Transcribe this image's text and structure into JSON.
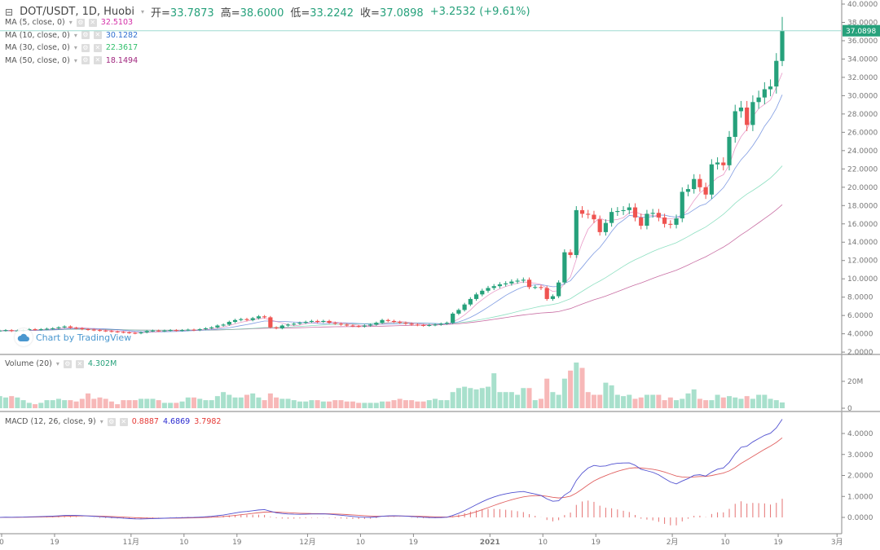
{
  "header": {
    "symbol": "DOT/USDT, 1D, Huobi",
    "open_label": "开=",
    "open": "33.7873",
    "high_label": "高=",
    "high": "38.6000",
    "low_label": "低=",
    "low": "33.2242",
    "close_label": "收=",
    "close": "37.0898",
    "change": "+3.2532 (+9.61%)"
  },
  "indicators": [
    {
      "label": "MA (5, close, 0)",
      "value": "32.5103",
      "color": "#d42fa8"
    },
    {
      "label": "MA (10, close, 0)",
      "value": "30.1282",
      "color": "#2f6fd0"
    },
    {
      "label": "MA (30, close, 0)",
      "value": "22.3617",
      "color": "#2fbf6a"
    },
    {
      "label": "MA (50, close, 0)",
      "value": "18.1494",
      "color": "#a0267e"
    }
  ],
  "volume_legend": {
    "label": "Volume (20)",
    "value": "4.302M",
    "color": "#26a17b"
  },
  "macd_legend": {
    "label": "MACD (12, 26, close, 9)",
    "hist": "0.8887",
    "macd": "4.6869",
    "signal": "3.7982",
    "hist_color": "#e53935",
    "macd_color": "#2a2ad0",
    "signal_color": "#e53935"
  },
  "watermark": "Chart by TradingView",
  "last_price_label": "37.0898",
  "colors": {
    "up": "#26a17b",
    "down": "#ef5350",
    "up_vol": "#a8e0cc",
    "down_vol": "#f7b8b8"
  },
  "chart_data": {
    "type": "candlestick",
    "price_axis": {
      "ticks": [
        "40.0000",
        "38.0000",
        "36.0000",
        "34.0000",
        "32.0000",
        "30.0000",
        "28.0000",
        "26.0000",
        "24.0000",
        "22.0000",
        "20.0000",
        "18.0000",
        "16.0000",
        "14.0000",
        "12.0000",
        "10.0000",
        "8.0000",
        "6.0000",
        "4.0000",
        "2.0000"
      ],
      "range": [
        2,
        40
      ]
    },
    "volume_axis": {
      "ticks": [
        "20M",
        "0"
      ],
      "range_millions": [
        0,
        40
      ]
    },
    "macd_axis": {
      "ticks": [
        "4.0000",
        "3.0000",
        "2.0000",
        "1.0000",
        "0.0000"
      ],
      "range": [
        -0.4,
        4.2
      ]
    },
    "time_axis": {
      "ticks": [
        "0",
        "19",
        "11月",
        "10",
        "19",
        "12月",
        "10",
        "19",
        "2021",
        "10",
        "19",
        "2月",
        "10",
        "19",
        "3月"
      ]
    },
    "last_candle": {
      "open": 33.7873,
      "high": 38.6,
      "low": 33.2242,
      "close": 37.0898
    },
    "close": [
      4.3,
      4.35,
      4.4,
      4.3,
      4.35,
      4.4,
      4.5,
      4.45,
      4.5,
      4.55,
      4.6,
      4.7,
      4.8,
      4.65,
      4.6,
      4.5,
      4.45,
      4.4,
      4.35,
      4.3,
      4.25,
      4.2,
      4.15,
      4.1,
      4.05,
      4.15,
      4.3,
      4.35,
      4.3,
      4.35,
      4.4,
      4.35,
      4.4,
      4.45,
      4.4,
      4.5,
      4.6,
      4.7,
      4.9,
      5.0,
      5.3,
      5.5,
      5.6,
      5.5,
      5.7,
      5.9,
      5.8,
      4.7,
      4.6,
      4.9,
      5.0,
      5.1,
      5.2,
      5.3,
      5.4,
      5.3,
      5.4,
      5.2,
      5.1,
      5.0,
      4.9,
      4.85,
      4.8,
      4.9,
      5.0,
      5.2,
      5.5,
      5.4,
      5.3,
      5.2,
      5.1,
      5.0,
      4.95,
      4.9,
      4.95,
      5.0,
      5.1,
      5.2,
      6.2,
      6.6,
      7.2,
      7.8,
      8.3,
      8.7,
      9.0,
      9.2,
      9.4,
      9.5,
      9.7,
      9.8,
      9.9,
      9.1,
      9.1,
      9.0,
      7.8,
      8.1,
      9.6,
      12.9,
      12.6,
      17.5,
      17.1,
      17.0,
      16.5,
      15.1,
      16.1,
      17.3,
      17.4,
      17.5,
      17.8,
      16.7,
      15.8,
      17.1,
      17.2,
      16.7,
      16.0,
      15.9,
      16.6,
      19.5,
      19.8,
      20.9,
      20.0,
      19.2,
      22.5,
      22.7,
      22.4,
      25.5,
      28.3,
      28.7,
      26.8,
      29.3,
      29.8,
      30.7,
      31.0,
      33.8,
      37.0898
    ],
    "volume_millions": [
      8,
      9,
      8,
      9,
      8,
      6,
      4,
      3,
      4,
      6,
      6,
      7,
      6,
      6,
      5,
      7,
      11,
      7,
      8,
      7,
      5,
      3,
      6,
      6,
      6,
      7,
      7,
      7,
      6,
      4,
      4,
      4,
      5,
      8,
      8,
      7,
      6,
      6,
      9,
      12,
      10,
      8,
      8,
      10,
      11,
      8,
      6,
      11,
      8,
      7,
      7,
      6,
      5,
      5,
      6,
      6,
      5,
      5,
      6,
      6,
      5,
      5,
      4,
      4,
      4,
      4,
      5,
      5,
      6,
      7,
      6,
      6,
      5,
      5,
      6,
      7,
      6,
      6,
      12,
      15,
      16,
      15,
      14,
      15,
      16,
      26,
      12,
      12,
      12,
      10,
      15,
      15,
      6,
      7,
      22,
      12,
      10,
      22,
      28,
      34,
      30,
      12,
      10,
      10,
      19,
      17,
      10,
      9,
      10,
      7,
      8,
      10,
      10,
      10,
      6,
      8,
      6,
      7,
      11,
      14,
      7,
      6,
      6,
      10,
      8,
      9,
      8,
      7,
      9,
      7,
      10,
      10,
      7,
      6,
      4.302
    ]
  }
}
